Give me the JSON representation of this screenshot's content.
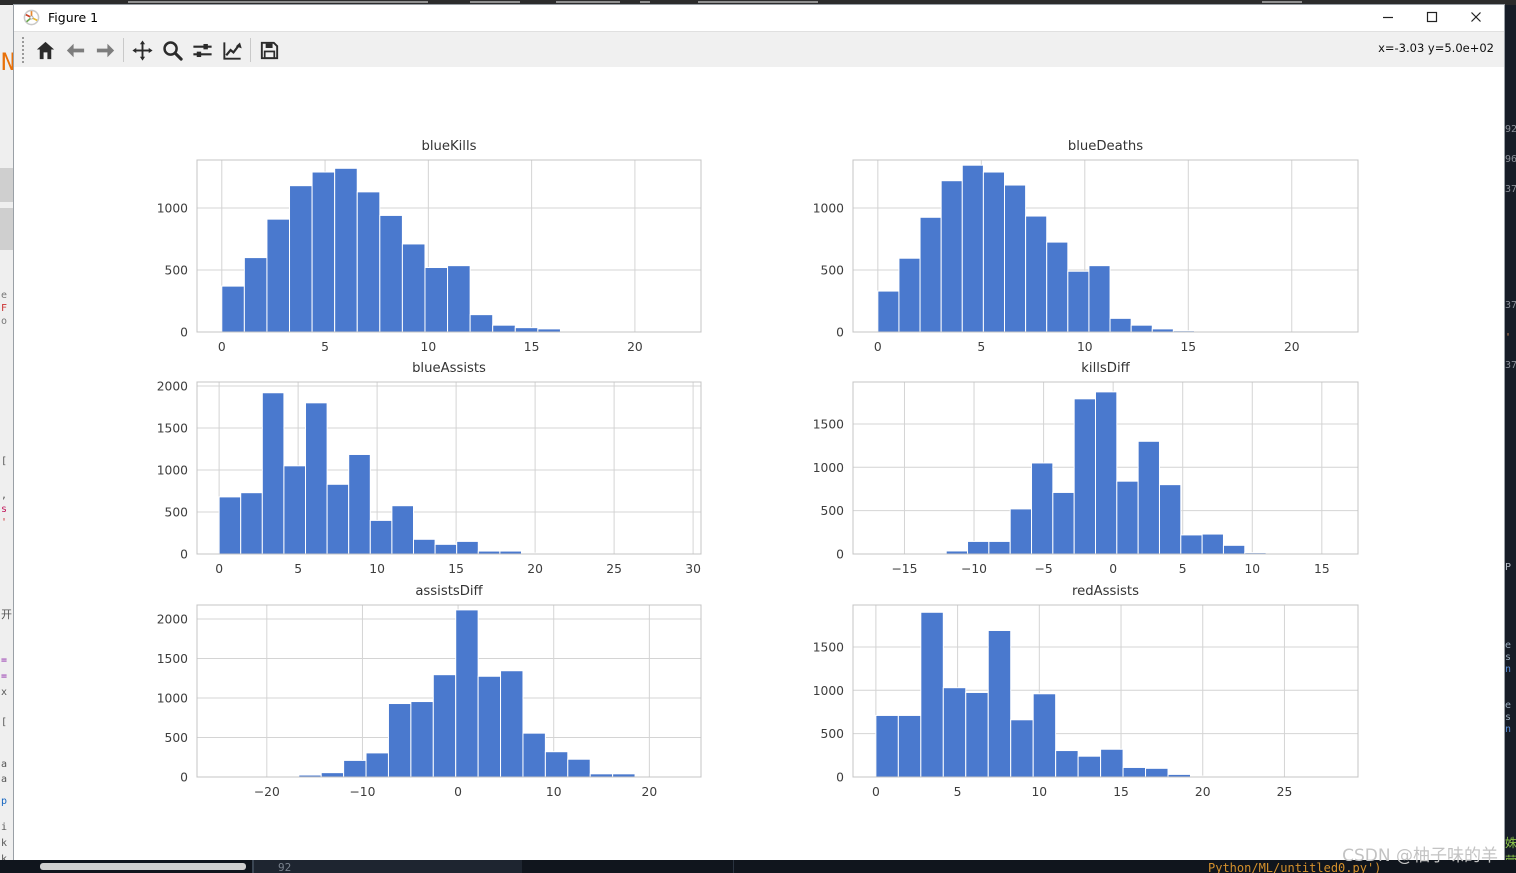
{
  "window": {
    "title": "Figure 1",
    "controls": [
      {
        "name": "minimize"
      },
      {
        "name": "maximize"
      },
      {
        "name": "close"
      }
    ]
  },
  "toolbar": {
    "tools": [
      {
        "name": "home"
      },
      {
        "name": "back"
      },
      {
        "name": "forward"
      },
      {
        "name": "pan"
      },
      {
        "name": "zoom"
      },
      {
        "name": "subplots"
      },
      {
        "name": "customize"
      },
      {
        "name": "save"
      }
    ],
    "readout": "x=-3.03 y=5.0e+02"
  },
  "colors": {
    "bar": "#4a79ce",
    "grid": "#d4d4d4",
    "spine": "#c4c4c4",
    "tick_label": "#3d3d3d",
    "title": "#333333",
    "toolbar_bg": "#f0f0f0"
  },
  "chart_data": [
    {
      "type": "bar",
      "title": "blueKills",
      "xlabel": "",
      "ylabel": "",
      "grid": true,
      "legend": false,
      "bin_start": 0,
      "bin_width": 1.093,
      "counts": [
        370,
        600,
        910,
        1180,
        1290,
        1320,
        1130,
        940,
        710,
        520,
        535,
        140,
        55,
        35,
        25
      ],
      "xticks": [
        0,
        5,
        10,
        15,
        20
      ],
      "yticks": [
        0,
        500,
        1000
      ],
      "xlim": [
        -1.2,
        23.2
      ],
      "ylim": [
        0,
        1387
      ]
    },
    {
      "type": "bar",
      "title": "blueDeaths",
      "xlabel": "",
      "ylabel": "",
      "grid": true,
      "legend": false,
      "bin_start": 0,
      "bin_width": 1.02,
      "counts": [
        330,
        595,
        925,
        1220,
        1345,
        1290,
        1185,
        935,
        725,
        490,
        535,
        110,
        55,
        25,
        10
      ],
      "xticks": [
        0,
        5,
        10,
        15,
        20
      ],
      "yticks": [
        0,
        500,
        1000
      ],
      "xlim": [
        -1.2,
        23.2
      ],
      "ylim": [
        0,
        1387
      ]
    },
    {
      "type": "bar",
      "title": "blueAssists",
      "xlabel": "",
      "ylabel": "",
      "grid": true,
      "legend": false,
      "bin_start": 0,
      "bin_width": 1.367,
      "counts": [
        680,
        730,
        1920,
        1050,
        1800,
        830,
        1185,
        400,
        575,
        175,
        115,
        150,
        35,
        35,
        10
      ],
      "xticks": [
        0,
        5,
        10,
        15,
        20,
        25,
        30
      ],
      "yticks": [
        0,
        500,
        1000,
        1500,
        2000
      ],
      "xlim": [
        -1.4,
        30.5
      ],
      "ylim": [
        0,
        2048
      ]
    },
    {
      "type": "bar",
      "title": "killsDiff",
      "xlabel": "",
      "ylabel": "",
      "grid": true,
      "legend": false,
      "bin_start": -12,
      "bin_width": 1.533,
      "counts": [
        35,
        145,
        145,
        520,
        1050,
        710,
        1790,
        1870,
        840,
        1300,
        800,
        220,
        230,
        100,
        15
      ],
      "xticks": [
        -15,
        -10,
        -5,
        0,
        5,
        10,
        15
      ],
      "yticks": [
        0,
        500,
        1000,
        1500
      ],
      "xlim": [
        -18.7,
        17.6
      ],
      "ylim": [
        0,
        1984
      ]
    },
    {
      "type": "bar",
      "title": "assistsDiff",
      "xlabel": "",
      "ylabel": "",
      "grid": true,
      "legend": false,
      "bin_start": -19,
      "bin_width": 2.344,
      "counts": [
        10,
        25,
        55,
        210,
        305,
        930,
        955,
        1295,
        2115,
        1275,
        1345,
        555,
        320,
        225,
        40,
        40
      ],
      "xticks": [
        -20,
        -10,
        0,
        10,
        20
      ],
      "yticks": [
        0,
        500,
        1000,
        1500,
        2000
      ],
      "xlim": [
        -27.3,
        25.4
      ],
      "ylim": [
        0,
        2177
      ]
    },
    {
      "type": "bar",
      "title": "redAssists",
      "xlabel": "",
      "ylabel": "",
      "grid": true,
      "legend": false,
      "bin_start": 0,
      "bin_width": 1.375,
      "counts": [
        710,
        710,
        1900,
        1030,
        975,
        1690,
        660,
        960,
        305,
        240,
        320,
        110,
        100,
        30,
        10,
        10
      ],
      "xticks": [
        0,
        5,
        10,
        15,
        20,
        25
      ],
      "yticks": [
        0,
        500,
        1000,
        1500
      ],
      "xlim": [
        -1.4,
        29.5
      ],
      "ylim": [
        0,
        1984
      ]
    }
  ],
  "watermark": "CSDN @柚子味的羊",
  "background": {
    "top_dashes": [
      [
        128,
        300
      ],
      [
        470,
        50
      ],
      [
        556,
        64
      ],
      [
        640,
        10
      ],
      [
        698,
        120
      ],
      [
        1262,
        40
      ]
    ],
    "left_blocks": [
      {
        "y": 163,
        "h": 34
      },
      {
        "y": 203,
        "h": 42
      }
    ],
    "left_fragments": [
      {
        "text": "N",
        "y": 52,
        "color": "#e8710a",
        "size": 24
      },
      {
        "text": "e",
        "y": 286,
        "color": "#777777"
      },
      {
        "text": "F",
        "y": 299,
        "color": "#cc3333"
      },
      {
        "text": "o",
        "y": 312,
        "color": "#777777"
      },
      {
        "text": "[",
        "y": 452,
        "color": "#555555"
      },
      {
        "text": ",",
        "y": 486,
        "color": "#555555"
      },
      {
        "text": "s",
        "y": 500,
        "color": "#c2185b"
      },
      {
        "text": "'",
        "y": 513,
        "color": "#cc3333"
      },
      {
        "text": "开",
        "y": 605,
        "color": "#555555",
        "size": 11
      },
      {
        "text": "=",
        "y": 651,
        "color": "#8e24aa"
      },
      {
        "text": "=",
        "y": 667,
        "color": "#8e24aa"
      },
      {
        "text": "x",
        "y": 683,
        "color": "#555555"
      },
      {
        "text": "[",
        "y": 713,
        "color": "#555555"
      },
      {
        "text": "a",
        "y": 755,
        "color": "#555555"
      },
      {
        "text": "a",
        "y": 770,
        "color": "#555555"
      },
      {
        "text": "p",
        "y": 792,
        "color": "#1565c0"
      },
      {
        "text": "i",
        "y": 818,
        "color": "#555555"
      },
      {
        "text": "k",
        "y": 834,
        "color": "#555555"
      },
      {
        "text": "k",
        "y": 850,
        "color": "#555555"
      }
    ],
    "right_fragments": [
      {
        "text": "92",
        "y": 120
      },
      {
        "text": "96",
        "y": 150
      },
      {
        "text": "37",
        "y": 180
      },
      {
        "text": "37",
        "y": 296
      },
      {
        "text": "'",
        "y": 328,
        "color": "#d89060"
      },
      {
        "text": "37",
        "y": 356
      },
      {
        "text": "P",
        "y": 558,
        "color": "#b8bec8"
      },
      {
        "text": "e",
        "y": 636,
        "color": "#99aabb"
      },
      {
        "text": "s",
        "y": 648,
        "color": "#99aabb"
      },
      {
        "text": "n",
        "y": 660,
        "color": "#5b8dd6"
      },
      {
        "text": "e",
        "y": 696,
        "color": "#99aabb"
      },
      {
        "text": "s",
        "y": 708,
        "color": "#99aabb"
      },
      {
        "text": "n",
        "y": 720,
        "color": "#5b8dd6"
      },
      {
        "text": "姝",
        "y": 833,
        "color": "#8bc34a",
        "size": 12
      },
      {
        "text": "营",
        "y": 851,
        "color": "#8bc34a",
        "size": 12
      }
    ],
    "bottom": {
      "line_number": "92",
      "console_text": "Python/ML/untitled0.py')"
    }
  }
}
